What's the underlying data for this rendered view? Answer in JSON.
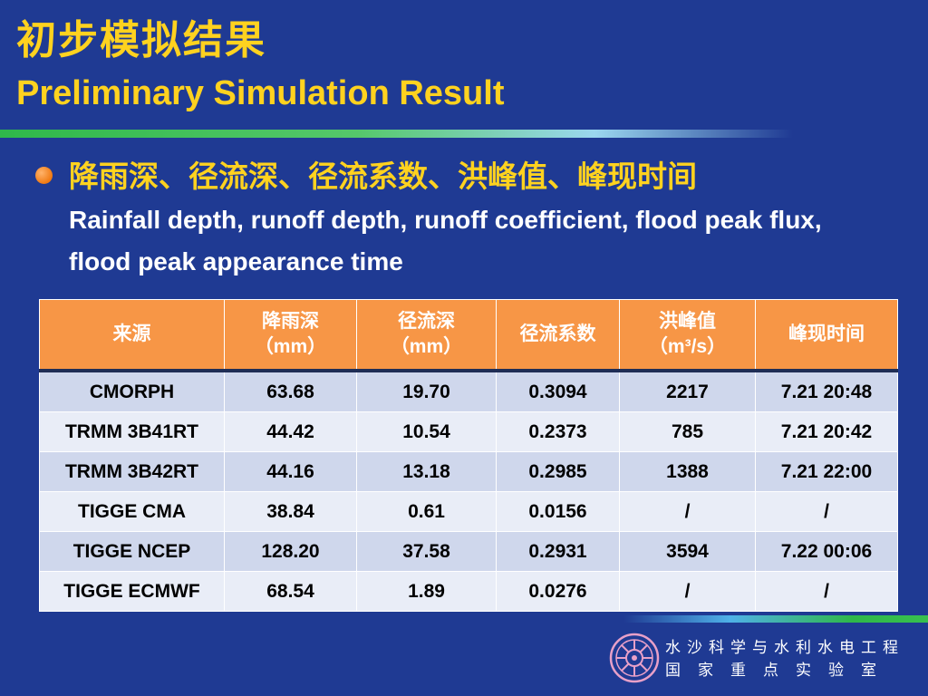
{
  "title": {
    "cn": "初步模拟结果",
    "en": "Preliminary Simulation Result"
  },
  "bullet": {
    "cn": "降雨深、径流深、径流系数、洪峰值、峰现时间",
    "en": "Rainfall depth, runoff depth, runoff coefficient, flood peak flux, flood peak appearance time"
  },
  "table": {
    "headers": [
      {
        "main": "来源",
        "sub": ""
      },
      {
        "main": "降雨深",
        "sub": "（mm）"
      },
      {
        "main": "径流深",
        "sub": "（mm）"
      },
      {
        "main": "径流系数",
        "sub": ""
      },
      {
        "main": "洪峰值",
        "sub": "（m³/s）"
      },
      {
        "main": "峰现时间",
        "sub": ""
      }
    ],
    "rows": [
      [
        "CMORPH",
        "63.68",
        "19.70",
        "0.3094",
        "2217",
        "7.21 20:48"
      ],
      [
        "TRMM 3B41RT",
        "44.42",
        "10.54",
        "0.2373",
        "785",
        "7.21 20:42"
      ],
      [
        "TRMM 3B42RT",
        "44.16",
        "13.18",
        "0.2985",
        "1388",
        "7.21 22:00"
      ],
      [
        "TIGGE CMA",
        "38.84",
        "0.61",
        "0.0156",
        "/",
        "/"
      ],
      [
        "TIGGE NCEP",
        "128.20",
        "37.58",
        "0.2931",
        "3594",
        "7.22 00:06"
      ],
      [
        "TIGGE ECMWF",
        "68.54",
        "1.89",
        "0.0276",
        "/",
        "/"
      ]
    ]
  },
  "footer": {
    "line1": "水沙科学与水利水电工程",
    "line2": "国家重点实验室",
    "logo_icon": "lab-emblem-icon"
  },
  "colors": {
    "background": "#1f3a93",
    "title": "#ffd21f",
    "header_fill": "#f79646",
    "row_odd": "#cfd7ec",
    "row_even": "#e9edf7"
  }
}
